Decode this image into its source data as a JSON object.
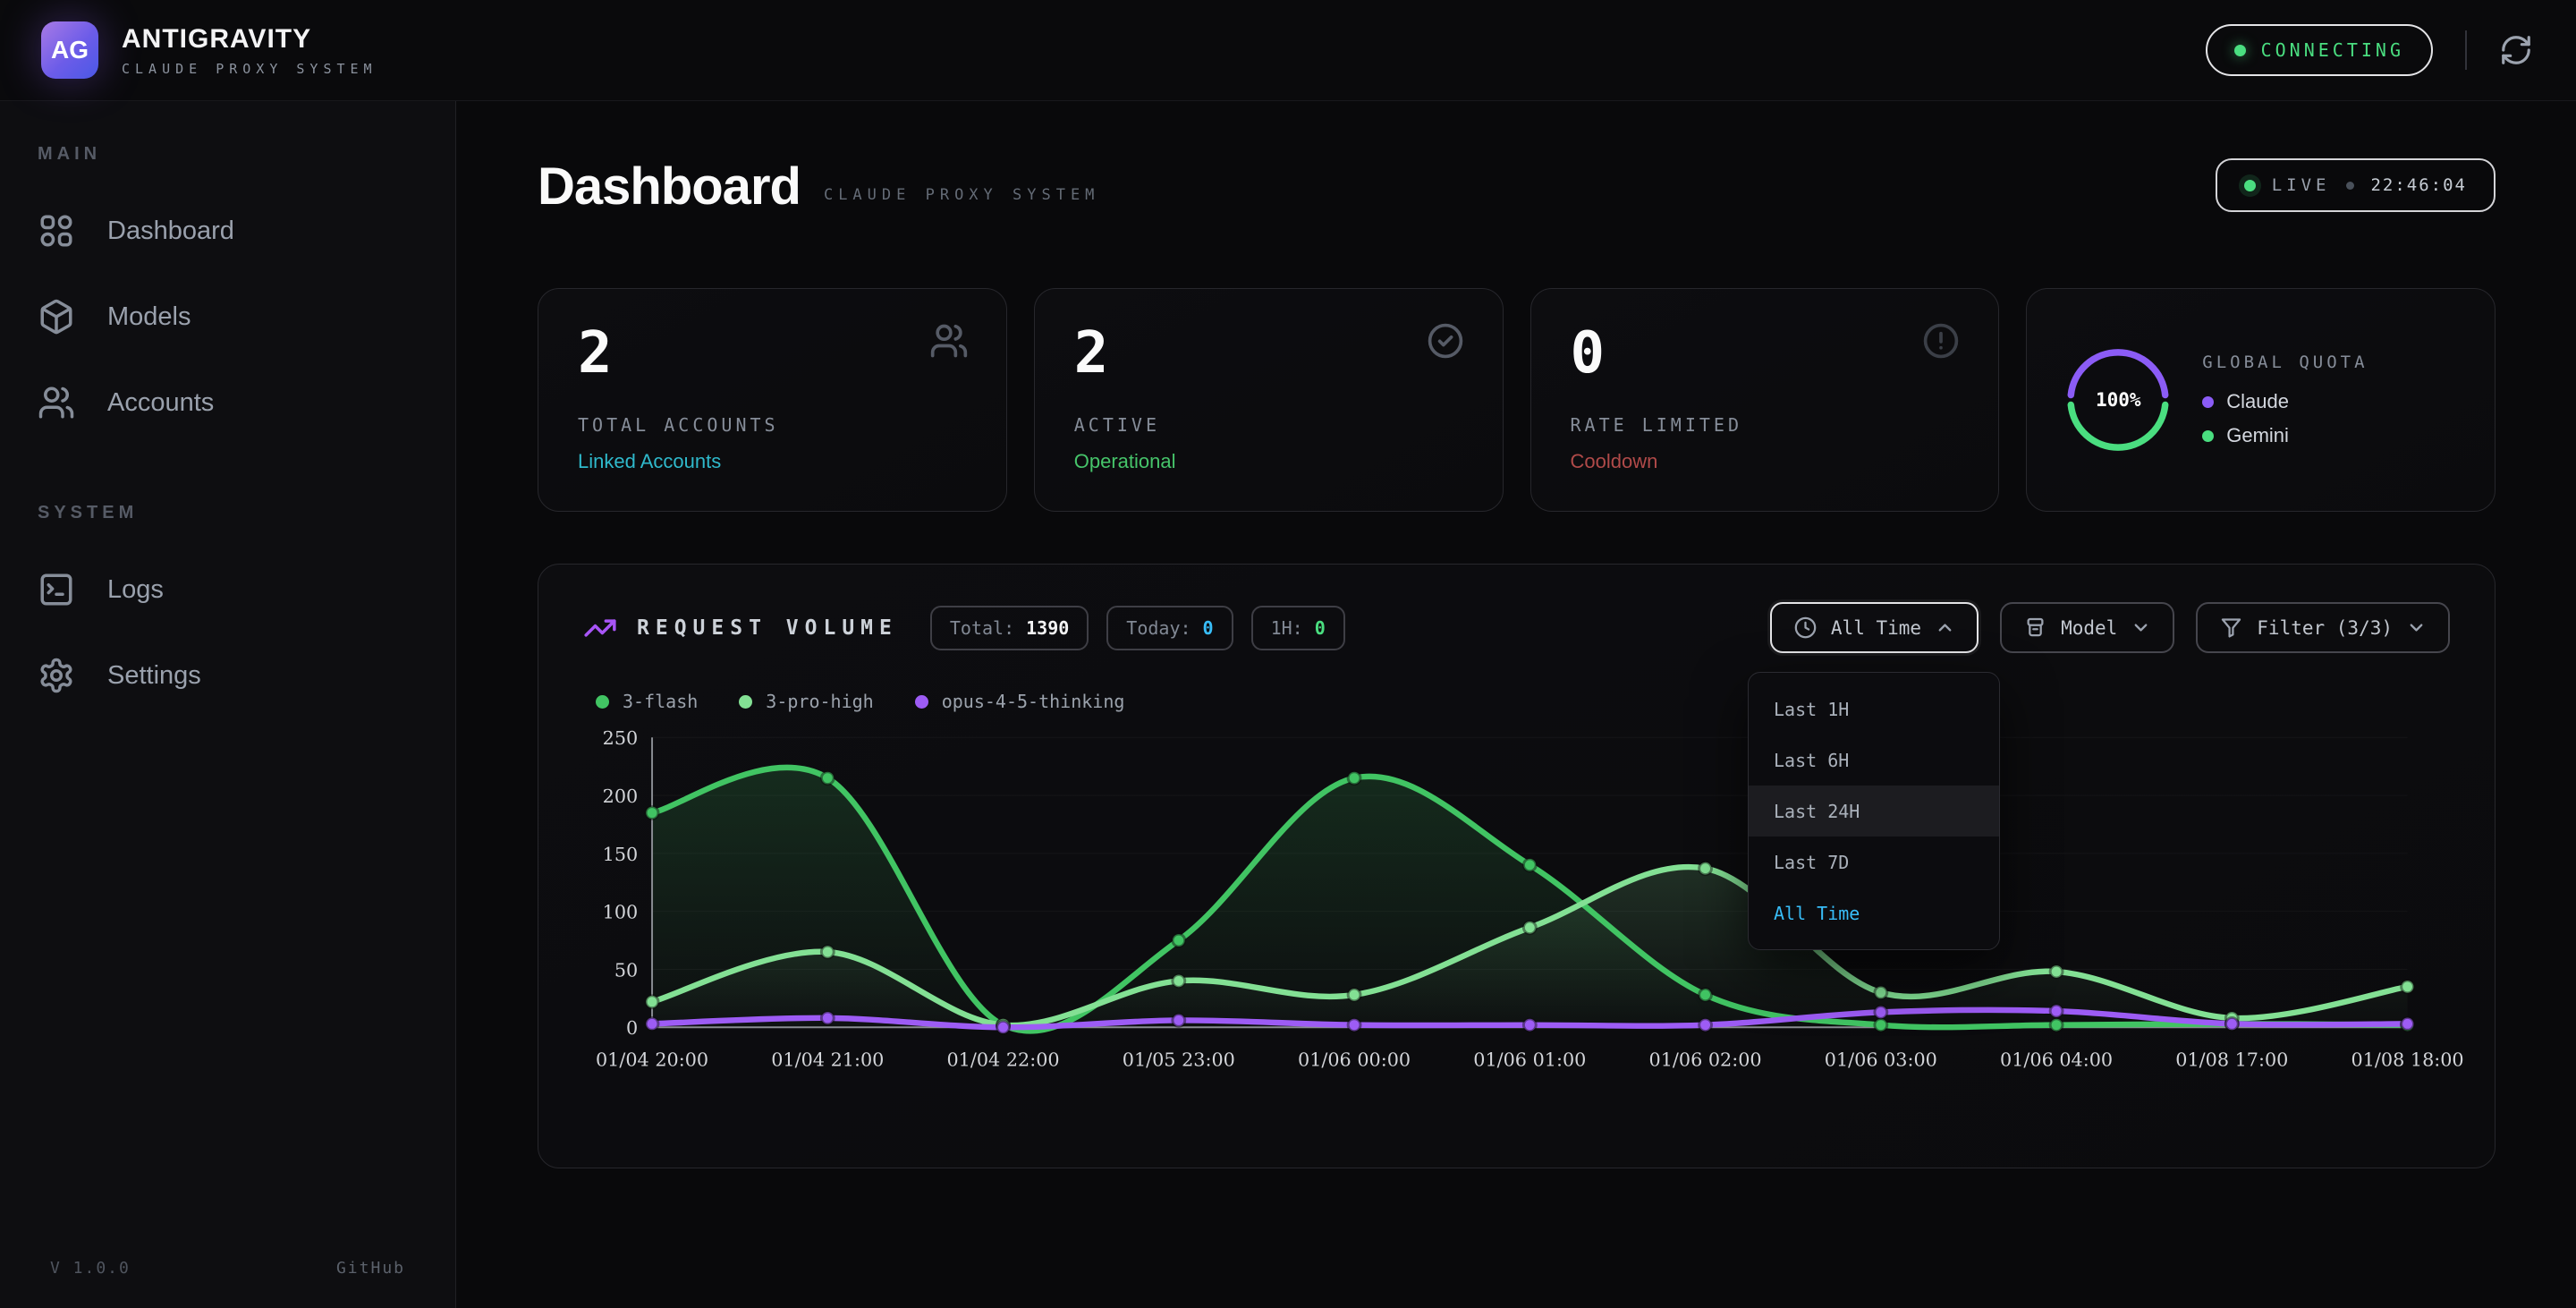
{
  "brand": {
    "logo": "AG",
    "title": "ANTIGRAVITY",
    "subtitle": "CLAUDE PROXY SYSTEM"
  },
  "header": {
    "status": "CONNECTING",
    "status_color": "#4ade80"
  },
  "sidebar": {
    "sections": [
      {
        "label": "MAIN",
        "items": [
          {
            "label": "Dashboard",
            "icon": "grid-icon"
          },
          {
            "label": "Models",
            "icon": "cube-icon"
          },
          {
            "label": "Accounts",
            "icon": "users-icon"
          }
        ]
      },
      {
        "label": "SYSTEM",
        "items": [
          {
            "label": "Logs",
            "icon": "terminal-icon"
          },
          {
            "label": "Settings",
            "icon": "gear-icon"
          }
        ]
      }
    ],
    "version": "V 1.0.0",
    "github": "GitHub"
  },
  "page": {
    "title": "Dashboard",
    "subtitle": "CLAUDE PROXY SYSTEM",
    "live_label": "LIVE",
    "live_time": "22:46:04"
  },
  "stats": {
    "cards": [
      {
        "value": "2",
        "label": "TOTAL ACCOUNTS",
        "sub": "Linked Accounts",
        "sub_color": "#2fb9cb",
        "icon": "users-icon"
      },
      {
        "value": "2",
        "label": "ACTIVE",
        "sub": "Operational",
        "sub_color": "#46c46a",
        "icon": "check-circle-icon"
      },
      {
        "value": "0",
        "label": "RATE LIMITED",
        "sub": "Cooldown",
        "sub_color": "#b04a49",
        "icon": "alert-circle-icon"
      }
    ],
    "quota": {
      "label": "GLOBAL QUOTA",
      "percent": "100%",
      "legend": [
        {
          "name": "Claude",
          "color": "#8b5cf6"
        },
        {
          "name": "Gemini",
          "color": "#4ade80"
        }
      ]
    }
  },
  "chart_card": {
    "title": "REQUEST VOLUME",
    "badges": [
      {
        "label": "Total:",
        "value": "1390",
        "value_color": "#f4f4f5"
      },
      {
        "label": "Today:",
        "value": "0",
        "value_color": "#38bdf8"
      },
      {
        "label": "1H:",
        "value": "0",
        "value_color": "#4ade80"
      }
    ],
    "range_button": {
      "label": "All Time",
      "icon": "clock-icon"
    },
    "model_button": {
      "label": "Model",
      "icon": "archive-box-icon"
    },
    "filter_button": {
      "label": "Filter (3/3)",
      "icon": "funnel-icon"
    },
    "dropdown": {
      "selected_color": "#38bdf8",
      "options": [
        {
          "label": "Last 1H"
        },
        {
          "label": "Last 6H"
        },
        {
          "label": "Last 24H"
        },
        {
          "label": "Last 7D"
        },
        {
          "label": "All Time"
        }
      ]
    }
  },
  "chart_data": {
    "type": "line",
    "x": [
      "01/04 20:00",
      "01/04 21:00",
      "01/04 22:00",
      "01/05 23:00",
      "01/06 00:00",
      "01/06 01:00",
      "01/06 02:00",
      "01/06 03:00",
      "01/06 04:00",
      "01/08 17:00",
      "01/08 18:00"
    ],
    "ylim": [
      0,
      250
    ],
    "yticks": [
      0,
      50,
      100,
      150,
      200,
      250
    ],
    "grid": true,
    "legend_position": "top-left",
    "series": [
      {
        "name": "3-flash",
        "color": "#41c463",
        "area": true,
        "values": [
          185,
          215,
          2,
          75,
          215,
          140,
          28,
          2,
          2,
          3,
          2
        ]
      },
      {
        "name": "3-pro-high",
        "color": "#83e094",
        "area": true,
        "values": [
          22,
          65,
          2,
          40,
          28,
          86,
          137,
          30,
          48,
          8,
          35
        ]
      },
      {
        "name": "opus-4-5-thinking",
        "color": "#9d5cf5",
        "area": false,
        "values": [
          3,
          8,
          0,
          6,
          2,
          2,
          2,
          13,
          14,
          3,
          3
        ]
      }
    ]
  }
}
